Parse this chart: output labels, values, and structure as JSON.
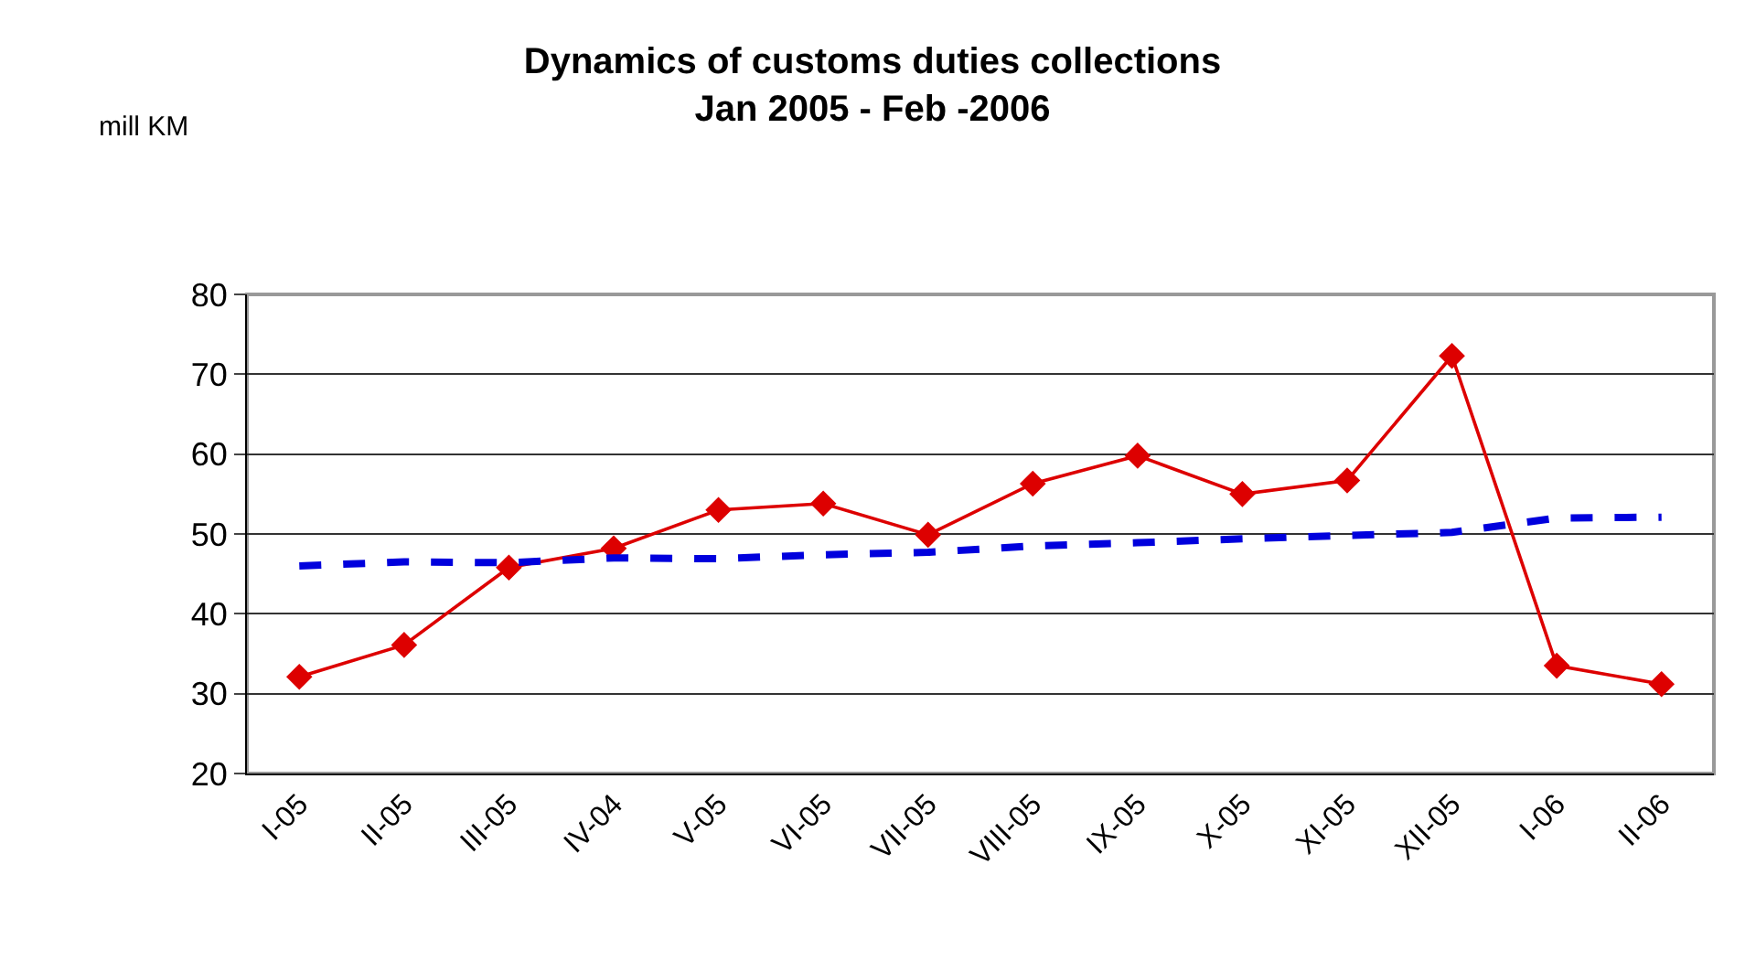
{
  "chart_data": {
    "type": "line",
    "title": "Dynamics of customs duties collections\nJan 2005 - Feb -2006",
    "ylabel": "mill KM",
    "categories": [
      "I-05",
      "II-05",
      "III-05",
      "IV-04",
      "V-05",
      "VI-05",
      "VII-05",
      "VIII-05",
      "IX-05",
      "X-05",
      "XI-05",
      "XII-05",
      "I-06",
      "II-06"
    ],
    "series": [
      {
        "color": "#dd0000",
        "marker": "diamond",
        "line_style": "solid",
        "values": [
          32.1,
          36.1,
          45.8,
          48.2,
          53,
          53.8,
          49.9,
          56.3,
          59.8,
          55,
          56.7,
          72.3,
          33.5,
          31.2
        ]
      },
      {
        "color": "#0000dd",
        "marker": "none",
        "line_style": "dashed",
        "values": [
          46,
          46.5,
          46.4,
          47,
          46.9,
          47.4,
          47.7,
          48.5,
          48.9,
          49.4,
          49.8,
          50.2,
          52,
          52.1
        ]
      }
    ],
    "ylim": [
      20,
      80
    ],
    "yticks": [
      20,
      30,
      40,
      50,
      60,
      70,
      80
    ],
    "grid": "y"
  }
}
